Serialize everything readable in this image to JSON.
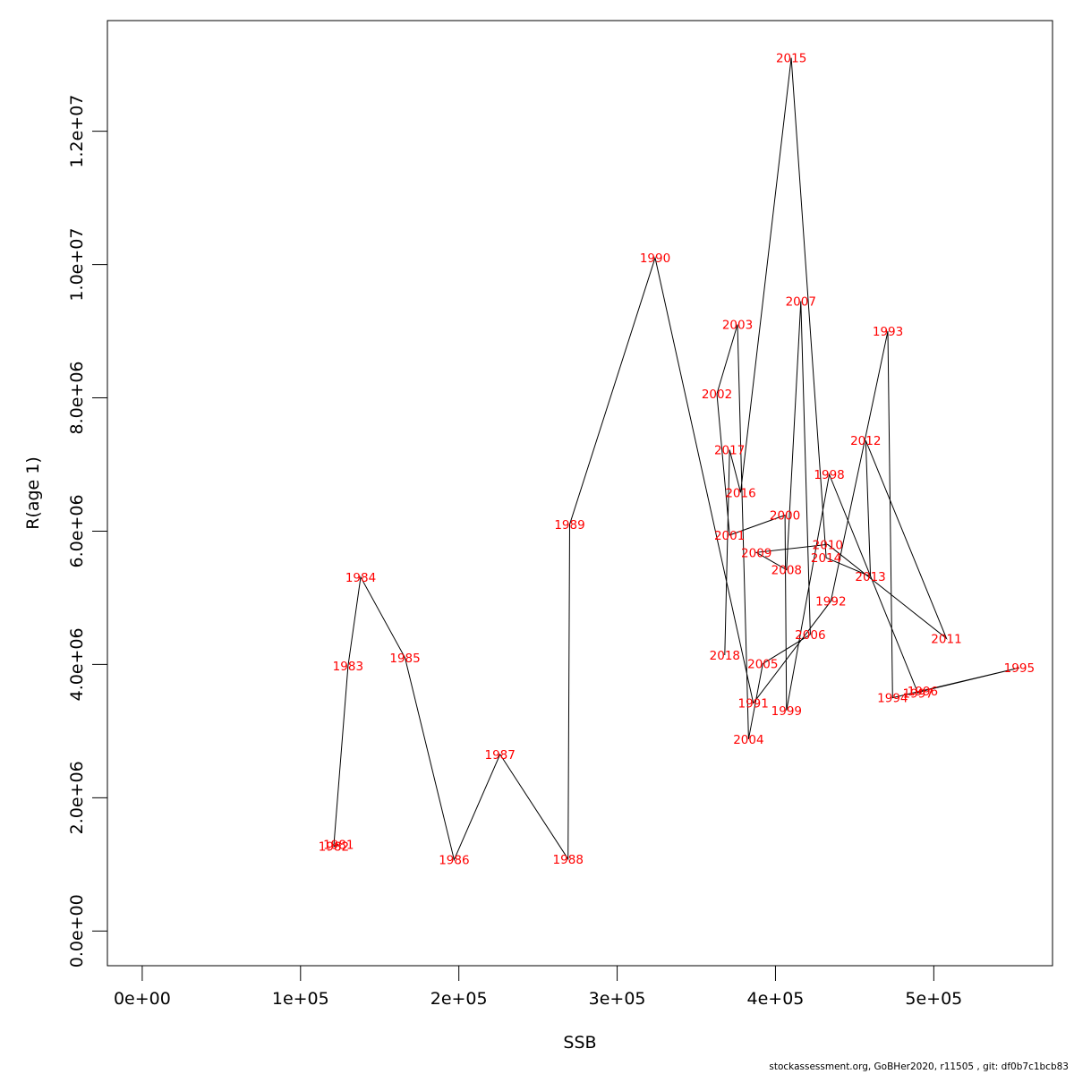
{
  "chart_data": {
    "type": "scatter",
    "connected": true,
    "xlabel": "SSB",
    "ylabel": "R(age 1)",
    "xlim": [
      -22000,
      575000
    ],
    "ylim": [
      -520000,
      13660000
    ],
    "xticks": [
      0,
      100000,
      200000,
      300000,
      400000,
      500000
    ],
    "xtick_labels": [
      "0e+00",
      "1e+05",
      "2e+05",
      "3e+05",
      "4e+05",
      "5e+05"
    ],
    "yticks": [
      0,
      2000000,
      4000000,
      6000000,
      8000000,
      10000000,
      12000000
    ],
    "ytick_labels": [
      "0.0e+00",
      "2.0e+06",
      "4.0e+06",
      "6.0e+06",
      "8.0e+06",
      "1.0e+07",
      "1.2e+07"
    ],
    "grid": false,
    "line_color": "#000000",
    "label_color": "#ff0000",
    "points": [
      {
        "year": "1981",
        "ssb": 124000,
        "r": 1300000
      },
      {
        "year": "1982",
        "ssb": 121000,
        "r": 1270000
      },
      {
        "year": "1983",
        "ssb": 130000,
        "r": 3980000
      },
      {
        "year": "1984",
        "ssb": 138000,
        "r": 5310000
      },
      {
        "year": "1985",
        "ssb": 166000,
        "r": 4100000
      },
      {
        "year": "1986",
        "ssb": 197000,
        "r": 1070000
      },
      {
        "year": "1987",
        "ssb": 226000,
        "r": 2650000
      },
      {
        "year": "1988",
        "ssb": 269000,
        "r": 1080000
      },
      {
        "year": "1989",
        "ssb": 270000,
        "r": 6100000
      },
      {
        "year": "1990",
        "ssb": 324000,
        "r": 10100000
      },
      {
        "year": "1991",
        "ssb": 386000,
        "r": 3420000
      },
      {
        "year": "1992",
        "ssb": 435000,
        "r": 4950000
      },
      {
        "year": "1993",
        "ssb": 471000,
        "r": 9000000
      },
      {
        "year": "1994",
        "ssb": 474000,
        "r": 3500000
      },
      {
        "year": "1995",
        "ssb": 554000,
        "r": 3950000
      },
      {
        "year": "1996",
        "ssb": 493000,
        "r": 3600000
      },
      {
        "year": "1997",
        "ssb": 490000,
        "r": 3570000
      },
      {
        "year": "1998",
        "ssb": 434000,
        "r": 6850000
      },
      {
        "year": "1999",
        "ssb": 407000,
        "r": 3310000
      },
      {
        "year": "2000",
        "ssb": 406000,
        "r": 6240000
      },
      {
        "year": "2001",
        "ssb": 371000,
        "r": 5940000
      },
      {
        "year": "2002",
        "ssb": 363000,
        "r": 8060000
      },
      {
        "year": "2003",
        "ssb": 376000,
        "r": 9100000
      },
      {
        "year": "2004",
        "ssb": 383000,
        "r": 2880000
      },
      {
        "year": "2005",
        "ssb": 392000,
        "r": 4010000
      },
      {
        "year": "2006",
        "ssb": 422000,
        "r": 4450000
      },
      {
        "year": "2007",
        "ssb": 416000,
        "r": 9450000
      },
      {
        "year": "2008",
        "ssb": 407000,
        "r": 5420000
      },
      {
        "year": "2009",
        "ssb": 388000,
        "r": 5680000
      },
      {
        "year": "2010",
        "ssb": 433000,
        "r": 5800000
      },
      {
        "year": "2011",
        "ssb": 508000,
        "r": 4390000
      },
      {
        "year": "2012",
        "ssb": 457000,
        "r": 7360000
      },
      {
        "year": "2013",
        "ssb": 460000,
        "r": 5320000
      },
      {
        "year": "2014",
        "ssb": 432000,
        "r": 5600000
      },
      {
        "year": "2015",
        "ssb": 410000,
        "r": 13100000
      },
      {
        "year": "2016",
        "ssb": 378000,
        "r": 6580000
      },
      {
        "year": "2017",
        "ssb": 371000,
        "r": 7220000
      },
      {
        "year": "2018",
        "ssb": 368000,
        "r": 4140000
      }
    ]
  },
  "footer": {
    "text": "stockassessment.org, GoBHer2020, r11505 , git: df0b7c1bcb83"
  }
}
